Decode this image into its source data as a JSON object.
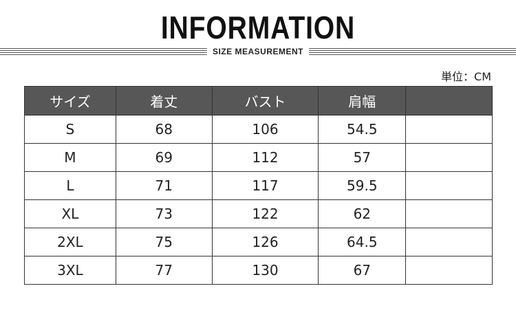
{
  "title": "INFORMATION",
  "subtitle": "SIZE MEASUREMENT",
  "unit": "単位：CM",
  "table": {
    "headers": [
      "サイズ",
      "着丈",
      "バスト",
      "肩幅",
      ""
    ],
    "rows": [
      [
        "S",
        "68",
        "106",
        "54.5",
        ""
      ],
      [
        "M",
        "69",
        "112",
        "57",
        ""
      ],
      [
        "L",
        "71",
        "117",
        "59.5",
        ""
      ],
      [
        "XL",
        "73",
        "122",
        "62",
        ""
      ],
      [
        "2XL",
        "75",
        "126",
        "64.5",
        ""
      ],
      [
        "3XL",
        "77",
        "130",
        "67",
        ""
      ]
    ]
  }
}
